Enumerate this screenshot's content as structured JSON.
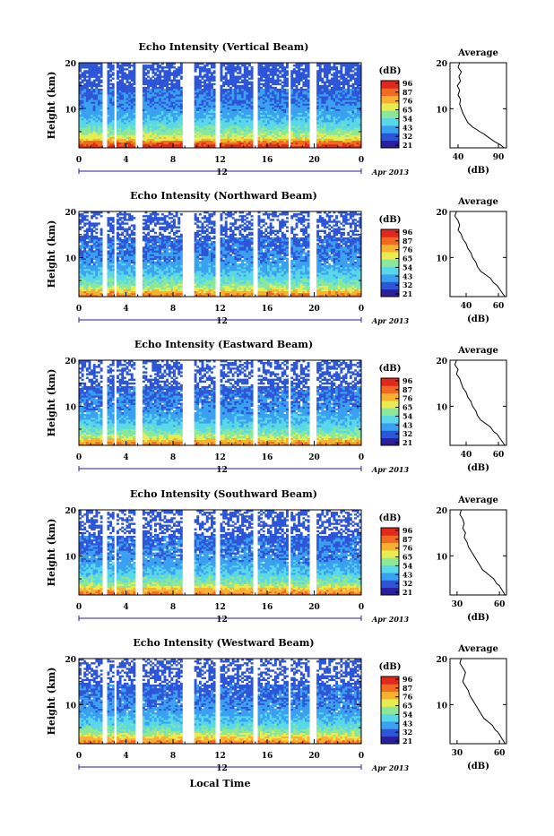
{
  "colorbar_unit": "(dB)",
  "colorbar_ticks": [
    "96",
    "87",
    "76",
    "65",
    "54",
    "43",
    "32",
    "21"
  ],
  "colorbar_colors": [
    "#2a1e9c",
    "#2d55d8",
    "#3aa0f0",
    "#58d8e8",
    "#8ce898",
    "#e8ec50",
    "#f8b030",
    "#f06a22",
    "#e0281c"
  ],
  "footer": {
    "xlabel": "Local Time"
  },
  "chart_data": [
    {
      "type": "heatmap",
      "title": "Echo Intensity (Vertical Beam)",
      "ylabel": "Height (km)",
      "x_ticks": [
        "0",
        "4",
        "8",
        "12",
        "16",
        "20",
        "0"
      ],
      "date_label": "12",
      "date_suffix": "Apr 2013",
      "xlim": [
        0,
        24
      ],
      "ylim": [
        1.5,
        20
      ],
      "y_ticks": [
        "20",
        "10"
      ],
      "clim": [
        21,
        96
      ],
      "gaps_hours": [
        [
          2.0,
          2.4
        ],
        [
          3.0,
          3.3
        ],
        [
          4.9,
          5.3
        ],
        [
          8.9,
          9.7
        ],
        [
          11.6,
          11.9
        ],
        [
          14.9,
          15.2
        ],
        [
          17.8,
          18.0
        ],
        [
          19.7,
          20.2
        ]
      ],
      "average_profile": {
        "title": "Average",
        "xlabel": "(dB)",
        "x_ticks": [
          "40",
          "90"
        ],
        "xlim": [
          30,
          100
        ],
        "y_ticks": [
          "20",
          "10"
        ],
        "x": [
          42,
          40,
          44,
          41,
          43,
          39,
          42,
          40,
          43,
          42,
          44,
          46,
          49,
          52,
          55,
          58,
          63,
          67,
          72,
          76,
          80,
          84,
          88,
          92,
          95,
          97
        ],
        "y": [
          20,
          19,
          18,
          17,
          16,
          15,
          14,
          13,
          12,
          11,
          10,
          9,
          8,
          7,
          6.5,
          6,
          5.5,
          5,
          4.5,
          4,
          3.5,
          3,
          2.6,
          2.2,
          1.8,
          1.5
        ]
      }
    },
    {
      "type": "heatmap",
      "title": "Echo Intensity (Northward Beam)",
      "ylabel": "Height (km)",
      "x_ticks": [
        "0",
        "4",
        "8",
        "12",
        "16",
        "20",
        "0"
      ],
      "date_label": "12",
      "date_suffix": "Apr 2013",
      "xlim": [
        0,
        24
      ],
      "ylim": [
        1.5,
        20
      ],
      "y_ticks": [
        "20",
        "10"
      ],
      "clim": [
        21,
        96
      ],
      "gaps_hours": [
        [
          2.0,
          2.4
        ],
        [
          3.0,
          3.3
        ],
        [
          4.9,
          5.3
        ],
        [
          8.9,
          9.7
        ],
        [
          11.6,
          11.9
        ],
        [
          14.9,
          15.2
        ],
        [
          17.8,
          18.0
        ],
        [
          19.7,
          20.2
        ]
      ],
      "average_profile": {
        "title": "Average",
        "xlabel": "(dB)",
        "x_ticks": [
          "40",
          "60"
        ],
        "xlim": [
          30,
          65
        ],
        "y_ticks": [
          "20",
          "10"
        ],
        "x": [
          34,
          33,
          35,
          36,
          35,
          37,
          38,
          40,
          41,
          43,
          44,
          46,
          47,
          49,
          51,
          53,
          55,
          56,
          57,
          59,
          60,
          62,
          64
        ],
        "y": [
          20,
          19,
          18,
          17,
          16,
          15,
          14,
          13,
          12,
          11,
          10,
          9,
          8,
          7,
          6.5,
          6,
          5.5,
          5,
          4.5,
          4,
          3.5,
          2.5,
          1.5
        ]
      }
    },
    {
      "type": "heatmap",
      "title": "Echo Intensity (Eastward Beam)",
      "ylabel": "Height (km)",
      "x_ticks": [
        "0",
        "4",
        "8",
        "12",
        "16",
        "20",
        "0"
      ],
      "date_label": "12",
      "date_suffix": "Apr 2013",
      "xlim": [
        0,
        24
      ],
      "ylim": [
        1.5,
        20
      ],
      "y_ticks": [
        "20",
        "10"
      ],
      "clim": [
        21,
        96
      ],
      "gaps_hours": [
        [
          2.0,
          2.4
        ],
        [
          3.0,
          3.3
        ],
        [
          4.9,
          5.3
        ],
        [
          8.9,
          9.7
        ],
        [
          11.6,
          11.9
        ],
        [
          14.9,
          15.2
        ],
        [
          17.8,
          18.0
        ],
        [
          19.7,
          20.2
        ]
      ],
      "average_profile": {
        "title": "Average",
        "xlabel": "(dB)",
        "x_ticks": [
          "40",
          "60"
        ],
        "xlim": [
          30,
          65
        ],
        "y_ticks": [
          "20",
          "10"
        ],
        "x": [
          34,
          33,
          35,
          34,
          36,
          37,
          38,
          40,
          41,
          43,
          44,
          46,
          47,
          49,
          51,
          53,
          55,
          56,
          57,
          59,
          60,
          62,
          64
        ],
        "y": [
          20,
          19,
          18,
          17,
          16,
          15,
          14,
          13,
          12,
          11,
          10,
          9,
          8,
          7,
          6.5,
          6,
          5.5,
          5,
          4.5,
          4,
          3.5,
          2.5,
          1.5
        ]
      }
    },
    {
      "type": "heatmap",
      "title": "Echo Intensity (Southward Beam)",
      "ylabel": "Height (km)",
      "x_ticks": [
        "0",
        "4",
        "8",
        "12",
        "16",
        "20",
        "0"
      ],
      "date_label": "12",
      "date_suffix": "Apr 2013",
      "xlim": [
        0,
        24
      ],
      "ylim": [
        1.5,
        20
      ],
      "y_ticks": [
        "20",
        "10"
      ],
      "clim": [
        21,
        96
      ],
      "gaps_hours": [
        [
          2.0,
          2.4
        ],
        [
          3.0,
          3.3
        ],
        [
          4.9,
          5.3
        ],
        [
          8.9,
          9.7
        ],
        [
          11.6,
          11.9
        ],
        [
          14.9,
          15.2
        ],
        [
          17.8,
          18.0
        ],
        [
          19.7,
          20.2
        ]
      ],
      "average_profile": {
        "title": "Average",
        "xlabel": "(dB)",
        "x_ticks": [
          "30",
          "60"
        ],
        "xlim": [
          25,
          65
        ],
        "y_ticks": [
          "20",
          "10"
        ],
        "x": [
          33,
          32,
          34,
          35,
          34,
          36,
          35,
          37,
          38,
          40,
          42,
          44,
          46,
          48,
          50,
          52,
          54,
          56,
          57,
          58,
          60,
          62,
          64
        ],
        "y": [
          20,
          19,
          18,
          17,
          16,
          15,
          14,
          13,
          12,
          11,
          10,
          9,
          8,
          7,
          6.5,
          6,
          5.5,
          5,
          4.5,
          4,
          3.5,
          2.5,
          1.5
        ]
      }
    },
    {
      "type": "heatmap",
      "title": "Echo Intensity (Westward Beam)",
      "ylabel": "Height (km)",
      "x_ticks": [
        "0",
        "4",
        "8",
        "12",
        "16",
        "20",
        "0"
      ],
      "date_label": "12",
      "date_suffix": "Apr 2013",
      "xlim": [
        0,
        24
      ],
      "ylim": [
        1.5,
        20
      ],
      "y_ticks": [
        "20",
        "10"
      ],
      "clim": [
        21,
        96
      ],
      "gaps_hours": [
        [
          2.0,
          2.4
        ],
        [
          3.0,
          3.3
        ],
        [
          4.9,
          5.3
        ],
        [
          8.9,
          9.7
        ],
        [
          11.6,
          11.9
        ],
        [
          14.9,
          15.2
        ],
        [
          17.8,
          18.0
        ],
        [
          19.7,
          20.2
        ]
      ],
      "average_profile": {
        "title": "Average",
        "xlabel": "(dB)",
        "x_ticks": [
          "30",
          "60"
        ],
        "xlim": [
          25,
          65
        ],
        "y_ticks": [
          "20",
          "10"
        ],
        "x": [
          33,
          32,
          34,
          36,
          35,
          34,
          36,
          38,
          39,
          41,
          43,
          45,
          47,
          49,
          51,
          53,
          55,
          56,
          57,
          59,
          60,
          62,
          64
        ],
        "y": [
          20,
          19,
          18,
          17,
          16,
          15,
          14,
          13,
          12,
          11,
          10,
          9,
          8,
          7,
          6.5,
          6,
          5.5,
          5,
          4.5,
          4,
          3.5,
          2.5,
          1.5
        ]
      }
    }
  ]
}
